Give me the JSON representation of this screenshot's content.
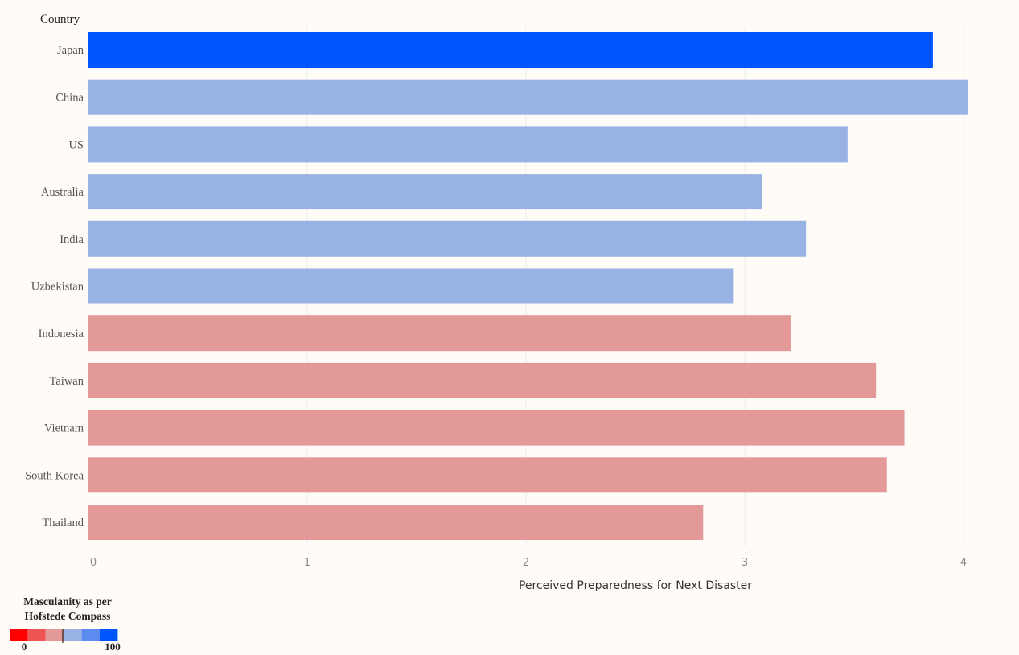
{
  "chart_data": {
    "type": "bar",
    "orientation": "horizontal",
    "row_header": "Country",
    "categories": [
      "Japan",
      "China",
      "US",
      "Australia",
      "India",
      "Uzbekistan",
      "Indonesia",
      "Taiwan",
      "Vietnam",
      "South Korea",
      "Thailand"
    ],
    "values": [
      3.86,
      4.02,
      3.47,
      3.08,
      3.28,
      2.95,
      3.21,
      3.6,
      3.73,
      3.65,
      2.81
    ],
    "bar_colors": [
      "#0055ff",
      "#98b2e4",
      "#98b2e4",
      "#98b2e4",
      "#98b2e4",
      "#98b2e4",
      "#e49999",
      "#e49999",
      "#e49999",
      "#e49999",
      "#e49999"
    ],
    "xlabel": "Perceived Preparedness for Next Disaster",
    "xlim": [
      0,
      4.25
    ],
    "xticks": [
      0,
      1,
      2,
      3,
      4
    ],
    "grid": true,
    "legend": {
      "title_line1": "Masculanity as per",
      "title_line2": "Hofstede Compass",
      "min_label": "0",
      "max_label": "100",
      "swatches": [
        "#ff0000",
        "#ee5555",
        "#e49999",
        "#98b2e4",
        "#5b8af0",
        "#0055ff"
      ],
      "position": "bottom-left"
    }
  }
}
